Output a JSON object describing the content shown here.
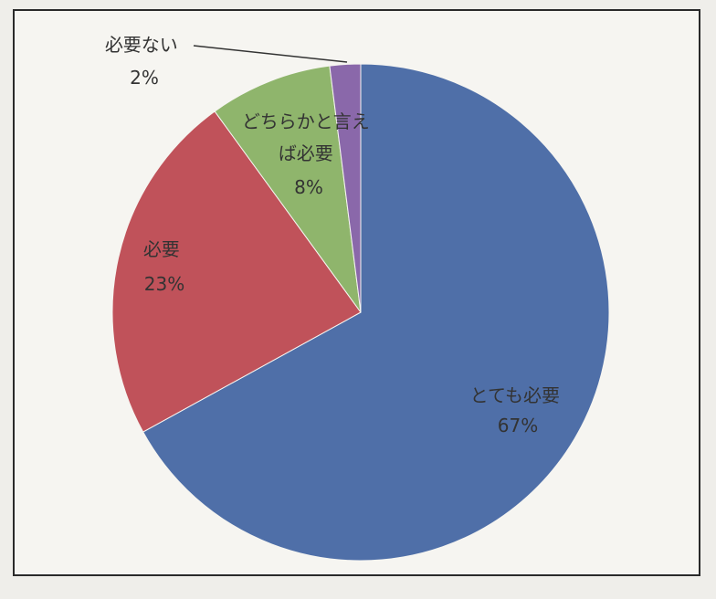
{
  "chart_data": {
    "type": "pie",
    "title": "",
    "slices": [
      {
        "category_lines": [
          "とても必要"
        ],
        "value": 67,
        "value_label": "67%",
        "color": "#4f6fa8"
      },
      {
        "category_lines": [
          "必要"
        ],
        "value": 23,
        "value_label": "23%",
        "color": "#c0525a"
      },
      {
        "category_lines": [
          "どちらかと言え",
          "ば必要"
        ],
        "value": 8,
        "value_label": "8%",
        "color": "#8fb56c"
      },
      {
        "category_lines": [
          "必要ない"
        ],
        "value": 2,
        "value_label": "2%",
        "color": "#8a68aa"
      }
    ]
  }
}
